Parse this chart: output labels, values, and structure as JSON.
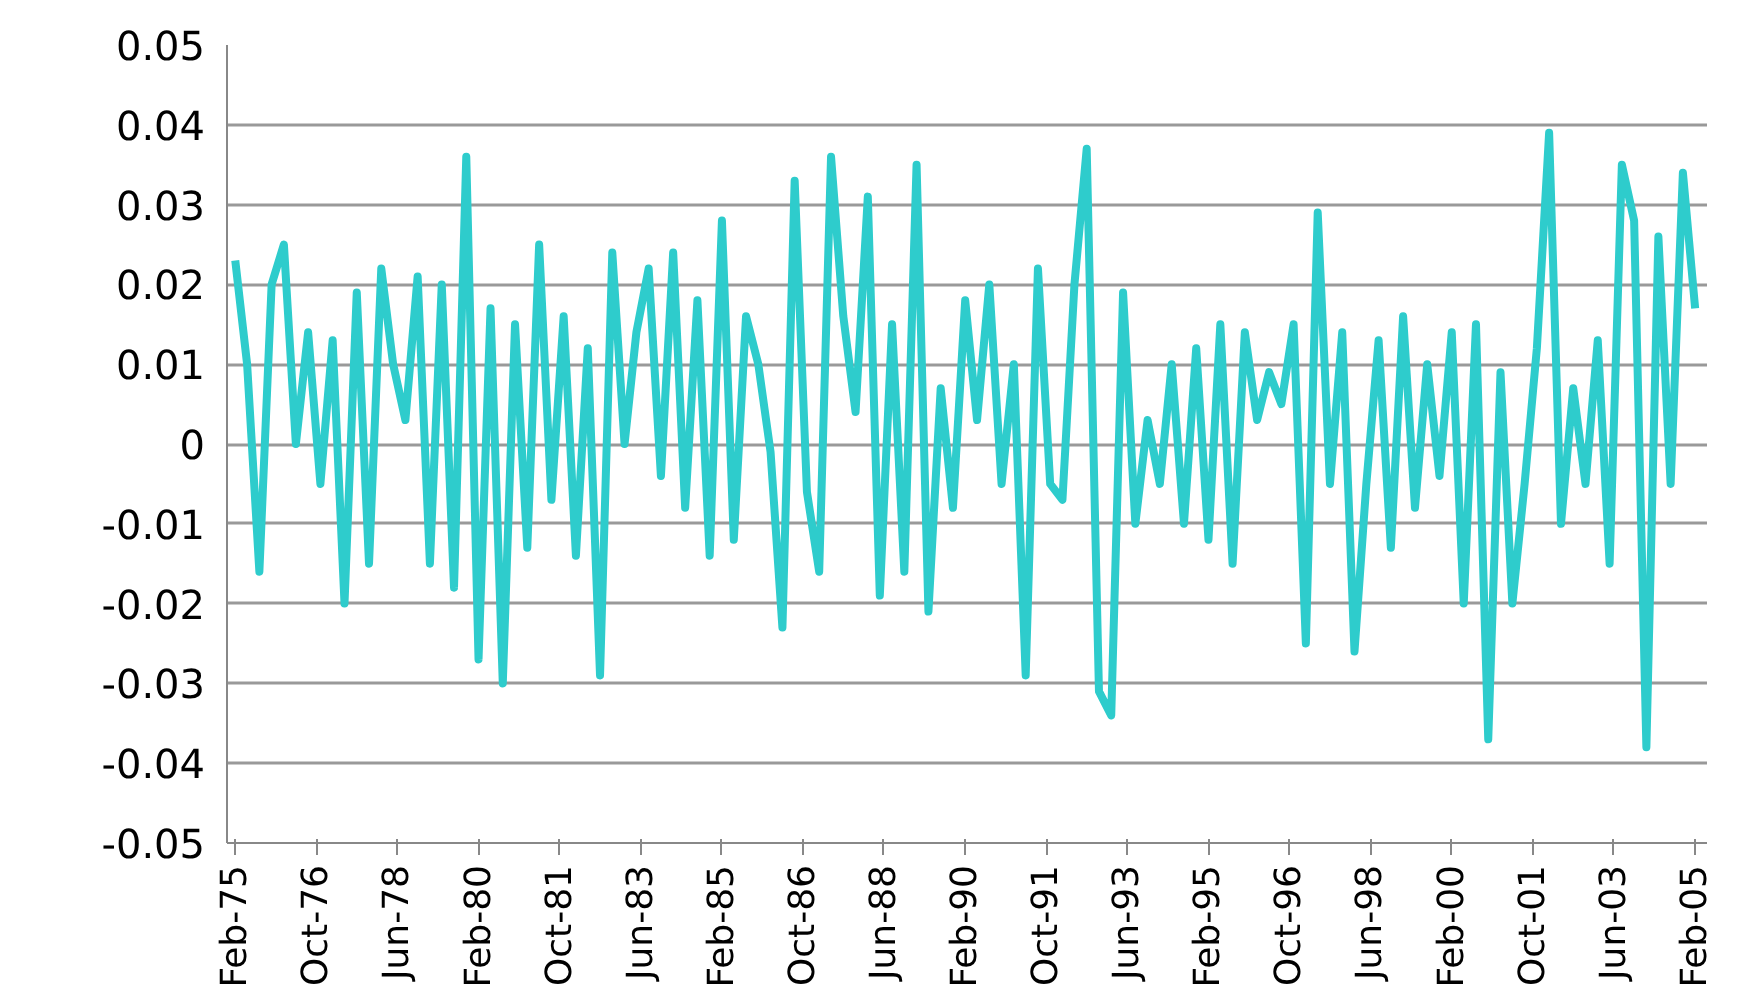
{
  "chart_data": {
    "type": "line",
    "color": "#2ecccc",
    "grid": "y",
    "marker": "none",
    "line_style": "solid",
    "xlim": [
      "1974-12",
      "2005-05"
    ],
    "xticks": [
      {
        "value": "1975-02",
        "label": "Feb-75"
      },
      {
        "value": "1976-10",
        "label": "Oct-76"
      },
      {
        "value": "1978-06",
        "label": "Jun-78"
      },
      {
        "value": "1980-02",
        "label": "Feb-80"
      },
      {
        "value": "1981-10",
        "label": "Oct-81"
      },
      {
        "value": "1983-06",
        "label": "Jun-83"
      },
      {
        "value": "1985-02",
        "label": "Feb-85"
      },
      {
        "value": "1986-10",
        "label": "Oct-86"
      },
      {
        "value": "1988-06",
        "label": "Jun-88"
      },
      {
        "value": "1990-02",
        "label": "Feb-90"
      },
      {
        "value": "1991-10",
        "label": "Oct-91"
      },
      {
        "value": "1993-06",
        "label": "Jun-93"
      },
      {
        "value": "1995-02",
        "label": "Feb-95"
      },
      {
        "value": "1996-10",
        "label": "Oct-96"
      },
      {
        "value": "1998-06",
        "label": "Jun-98"
      },
      {
        "value": "2000-02",
        "label": "Feb-00"
      },
      {
        "value": "2001-10",
        "label": "Oct-01"
      },
      {
        "value": "2003-06",
        "label": "Jun-03"
      },
      {
        "value": "2005-02",
        "label": "Feb-05"
      }
    ],
    "ylim": [
      -0.05,
      0.05
    ],
    "yticks": [
      -0.05,
      -0.04,
      -0.03,
      -0.02,
      -0.01,
      0,
      0.01,
      0.02,
      0.03,
      0.04,
      0.05
    ],
    "x": [
      "1975-02",
      "1975-05",
      "1975-08",
      "1975-11",
      "1976-02",
      "1976-05",
      "1976-08",
      "1976-11",
      "1977-02",
      "1977-05",
      "1977-08",
      "1977-11",
      "1978-02",
      "1978-05",
      "1978-08",
      "1978-11",
      "1979-02",
      "1979-05",
      "1979-08",
      "1979-11",
      "1980-02",
      "1980-05",
      "1980-08",
      "1980-11",
      "1981-02",
      "1981-05",
      "1981-08",
      "1981-11",
      "1982-02",
      "1982-05",
      "1982-08",
      "1982-11",
      "1983-02",
      "1983-05",
      "1983-08",
      "1983-11",
      "1984-02",
      "1984-05",
      "1984-08",
      "1984-11",
      "1985-02",
      "1985-05",
      "1985-08",
      "1985-11",
      "1986-02",
      "1986-05",
      "1986-08",
      "1986-11",
      "1987-02",
      "1987-05",
      "1987-08",
      "1987-11",
      "1988-02",
      "1988-05",
      "1988-08",
      "1988-11",
      "1989-02",
      "1989-05",
      "1989-08",
      "1989-11",
      "1990-02",
      "1990-05",
      "1990-08",
      "1990-11",
      "1991-02",
      "1991-05",
      "1991-08",
      "1991-11",
      "1992-02",
      "1992-05",
      "1992-08",
      "1992-11",
      "1993-02",
      "1993-05",
      "1993-08",
      "1993-11",
      "1994-02",
      "1994-05",
      "1994-08",
      "1994-11",
      "1995-02",
      "1995-05",
      "1995-08",
      "1995-11",
      "1996-02",
      "1996-05",
      "1996-08",
      "1996-11",
      "1997-02",
      "1997-05",
      "1997-08",
      "1997-11",
      "1998-02",
      "1998-05",
      "1998-08",
      "1998-11",
      "1999-02",
      "1999-05",
      "1999-08",
      "1999-11",
      "2000-02",
      "2000-05",
      "2000-08",
      "2000-11",
      "2001-02",
      "2001-05",
      "2001-08",
      "2001-11",
      "2002-02",
      "2002-05",
      "2002-08",
      "2002-11",
      "2003-02",
      "2003-05",
      "2003-08",
      "2003-11",
      "2004-02",
      "2004-05",
      "2004-08",
      "2004-11",
      "2005-02"
    ],
    "values": [
      0.023,
      0.01,
      -0.016,
      0.02,
      0.025,
      0.0,
      0.014,
      -0.005,
      0.013,
      -0.02,
      0.019,
      -0.015,
      0.022,
      0.01,
      0.003,
      0.021,
      -0.015,
      0.02,
      -0.018,
      0.036,
      -0.027,
      0.017,
      -0.03,
      0.015,
      -0.013,
      0.025,
      -0.007,
      0.016,
      -0.014,
      0.012,
      -0.029,
      0.024,
      0.0,
      0.014,
      0.022,
      -0.004,
      0.024,
      -0.008,
      0.018,
      -0.014,
      0.028,
      -0.012,
      0.016,
      0.01,
      -0.001,
      -0.023,
      0.033,
      -0.006,
      -0.016,
      0.036,
      0.016,
      0.004,
      0.031,
      -0.019,
      0.015,
      -0.016,
      0.035,
      -0.021,
      0.007,
      -0.008,
      0.018,
      0.003,
      0.02,
      -0.005,
      0.01,
      -0.029,
      0.022,
      -0.005,
      -0.007,
      0.02,
      0.037,
      -0.031,
      -0.034,
      0.019,
      -0.01,
      0.003,
      -0.005,
      0.01,
      -0.01,
      0.012,
      -0.012,
      0.015,
      -0.015,
      0.014,
      0.003,
      0.009,
      0.005,
      0.015,
      -0.025,
      0.029,
      -0.005,
      0.014,
      -0.026,
      -0.005,
      0.013,
      -0.013,
      0.016,
      -0.008,
      0.01,
      -0.004,
      0.014,
      -0.02,
      0.015,
      -0.037,
      0.009,
      -0.02,
      -0.005,
      0.012,
      0.039,
      -0.01,
      0.007,
      -0.005,
      0.013,
      -0.015,
      0.035,
      0.028,
      -0.038,
      0.026,
      -0.005,
      0.034,
      0.017
    ]
  }
}
